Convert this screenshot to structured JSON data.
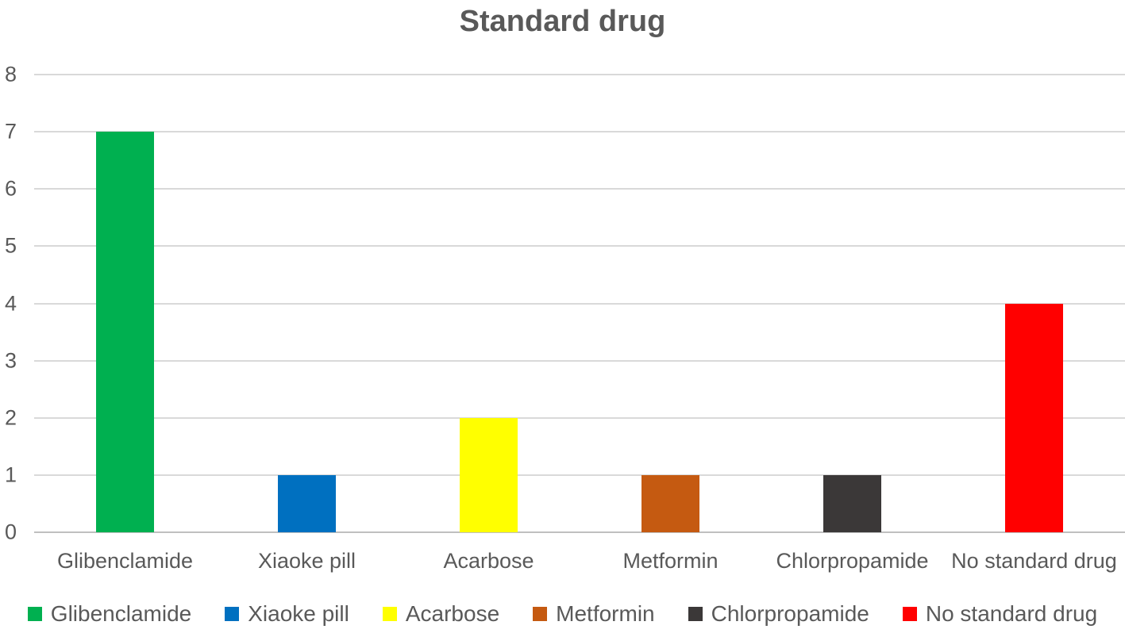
{
  "title": "Standard drug",
  "chart_data": {
    "type": "bar",
    "title": "Standard drug",
    "categories": [
      "Glibenclamide",
      "Xiaoke pill",
      "Acarbose",
      "Metformin",
      "Chlorpropamide",
      "No standard drug"
    ],
    "values": [
      7,
      1,
      2,
      1,
      1,
      4
    ],
    "bar_colors": [
      "#00B050",
      "#0070C0",
      "#FFFF00",
      "#C55A11",
      "#3B3838",
      "#FF0000"
    ],
    "xlabel": "",
    "ylabel": "",
    "ylim": [
      0,
      8
    ],
    "yticks": [
      "0",
      "1",
      "2",
      "3",
      "4",
      "5",
      "6",
      "7",
      "8"
    ],
    "grid": true,
    "legend_position": "bottom",
    "legend": [
      {
        "label": "Glibenclamide",
        "color": "#00B050"
      },
      {
        "label": "Xiaoke pill",
        "color": "#0070C0"
      },
      {
        "label": "Acarbose",
        "color": "#FFFF00"
      },
      {
        "label": "Metformin",
        "color": "#C55A11"
      },
      {
        "label": "Chlorpropamide",
        "color": "#3B3838"
      },
      {
        "label": "No standard drug",
        "color": "#FF0000"
      }
    ]
  },
  "colors": {
    "text": "#595959",
    "gridline": "#D9D9D9",
    "baseline": "#BFBFBF",
    "background": "#FFFFFF"
  }
}
